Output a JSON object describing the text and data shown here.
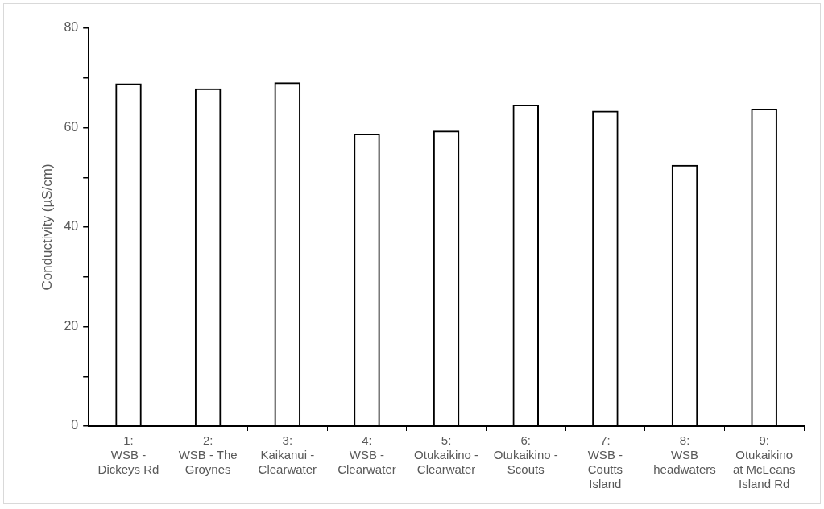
{
  "chart_data": {
    "type": "bar",
    "ylabel": "Conductivity (µS/cm)",
    "categories": [
      "1: WSB - Dickeys Rd",
      "2: WSB - The Groynes",
      "3: Kaikanui - Clearwater",
      "4: WSB - Clearwater",
      "5: Otukaikino - Clearwater",
      "6: Otukaikino - Scouts",
      "7: WSB - Coutts Island",
      "8: WSB headwaters",
      "9: Otukaikino at McLeans Island Rd"
    ],
    "values": [
      68.9,
      67.9,
      69.1,
      58.8,
      59.4,
      64.6,
      63.4,
      52.5,
      63.8
    ],
    "color": "#000000",
    "ylim": [
      0,
      80
    ],
    "yticks": [
      0,
      {
        "value": 10,
        "label": null
      },
      20,
      {
        "value": 30,
        "label": null
      },
      40,
      {
        "value": 50,
        "label": null
      },
      60,
      {
        "value": 70,
        "label": null
      },
      80
    ],
    "grid": false,
    "legend": false
  }
}
